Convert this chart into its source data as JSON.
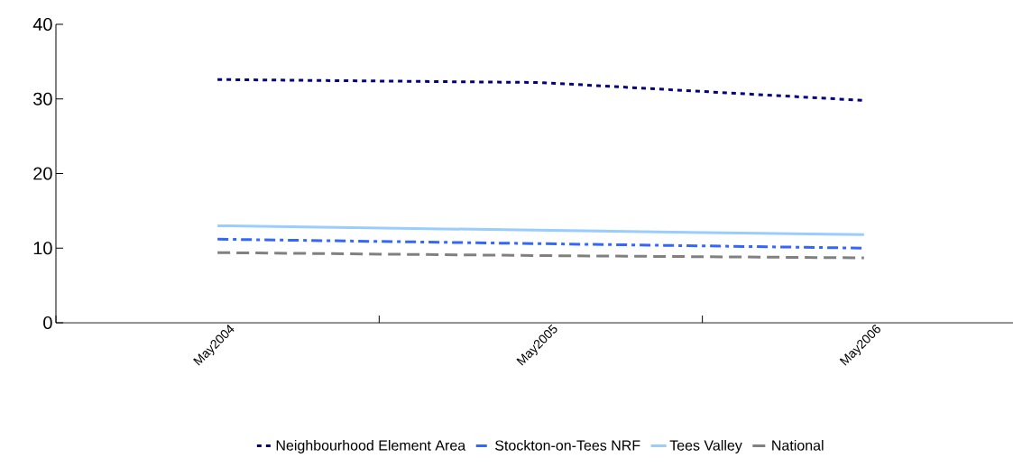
{
  "chart_data": {
    "type": "line",
    "categories": [
      "May2004",
      "May2005",
      "May2006"
    ],
    "series": [
      {
        "name": "Neighbourhood Element Area",
        "color": "#000080",
        "line_style": "dotted",
        "values": [
          32.6,
          32.2,
          29.8
        ]
      },
      {
        "name": "Stockton-on-Tees NRF",
        "color": "#3366ff",
        "line_style": "dashdot",
        "values": [
          11.2,
          10.6,
          10.0
        ]
      },
      {
        "name": "Tees Valley",
        "color": "#99ccff",
        "line_style": "solid",
        "values": [
          13.0,
          12.4,
          11.8
        ]
      },
      {
        "name": "National",
        "color": "#808080",
        "line_style": "dashed",
        "values": [
          9.4,
          9.0,
          8.7
        ]
      }
    ],
    "ylim": [
      0,
      40
    ],
    "yticks": [
      0,
      10,
      20,
      30,
      40
    ],
    "grid": false,
    "legend": "bottom",
    "marker": "none"
  }
}
